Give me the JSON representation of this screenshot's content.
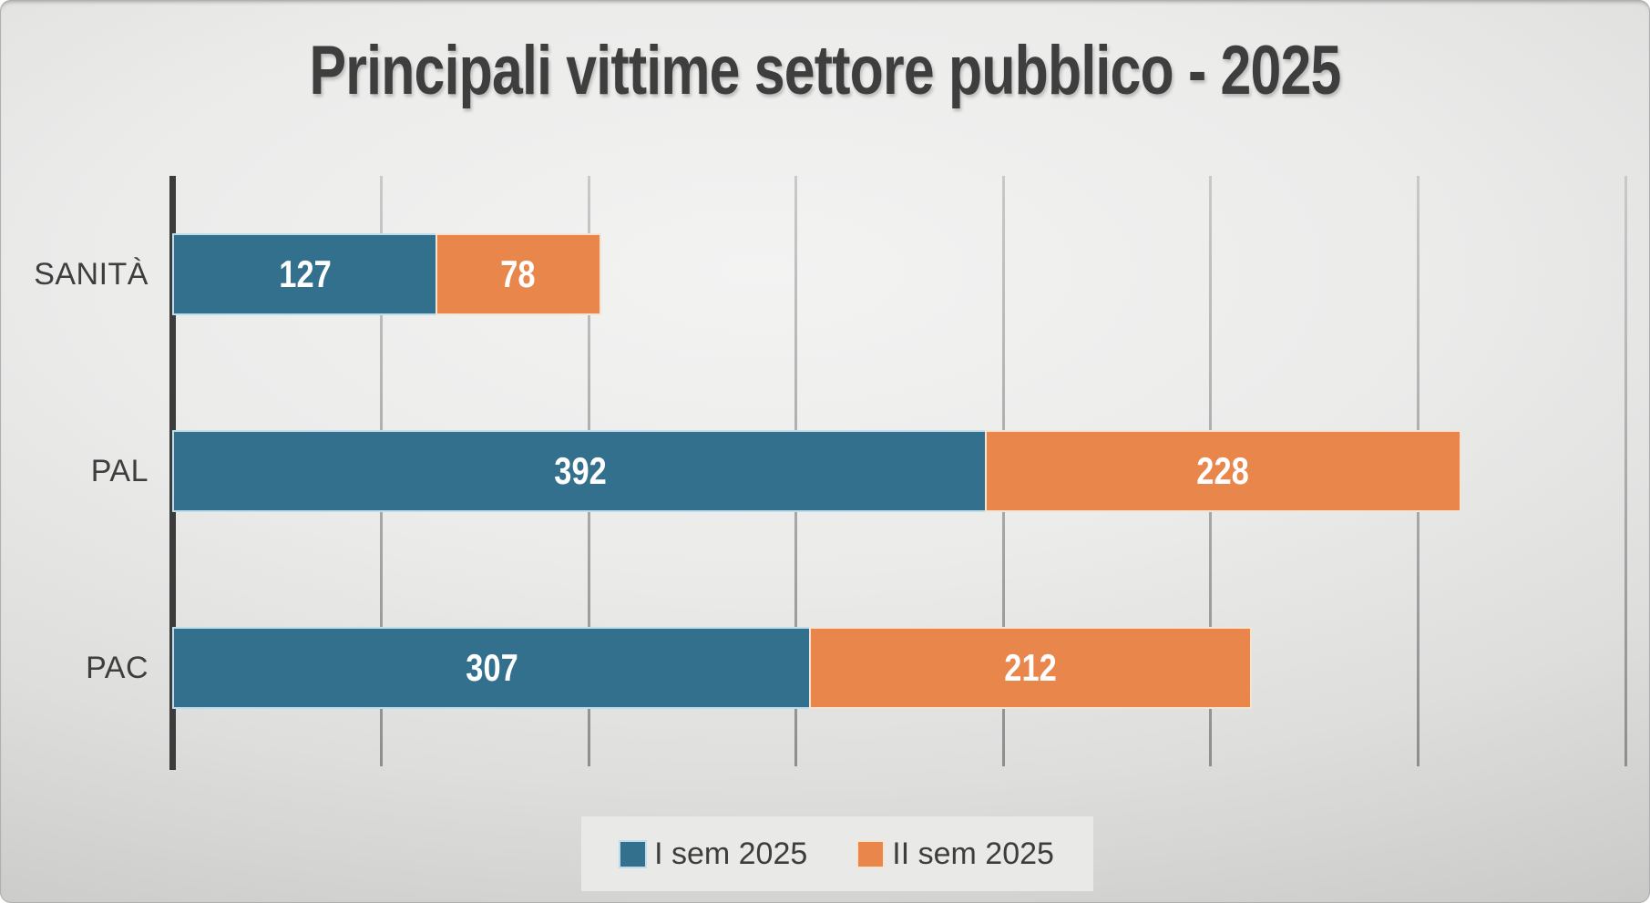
{
  "title": "Principali vittime settore pubblico - 2025",
  "chart_data": {
    "type": "bar",
    "orientation": "horizontal",
    "stacked": true,
    "title": "Principali vittime settore pubblico - 2025",
    "categories": [
      "SANITÀ",
      "PAL",
      "PAC"
    ],
    "series": [
      {
        "name": "I sem 2025",
        "color": "#32708E",
        "edge_color": "#bfdcea",
        "values": [
          127,
          392,
          307
        ]
      },
      {
        "name": "II sem 2025",
        "color": "#E8864C",
        "edge_color": "#f7e3d1",
        "values": [
          78,
          228,
          212
        ]
      }
    ],
    "totals": [
      205,
      620,
      519
    ],
    "xlim": [
      0,
      700
    ],
    "gridline_step": 100,
    "grid": true,
    "x_tick_labels_visible": false,
    "legend_position": "bottom",
    "value_labels_position": "inside-center",
    "value_label_color": "#FFFFFF"
  },
  "colors": {
    "background_center": "#F2F2F1",
    "background_edge": "#BFBFBE",
    "title_text": "#3E3E3E",
    "category_text": "#3E3E3E",
    "axis_line": "#3C3C3C",
    "gridline": "#9A9A9A",
    "legend_panel": "#E9E9E8",
    "legend_text": "#3D3D3D"
  }
}
